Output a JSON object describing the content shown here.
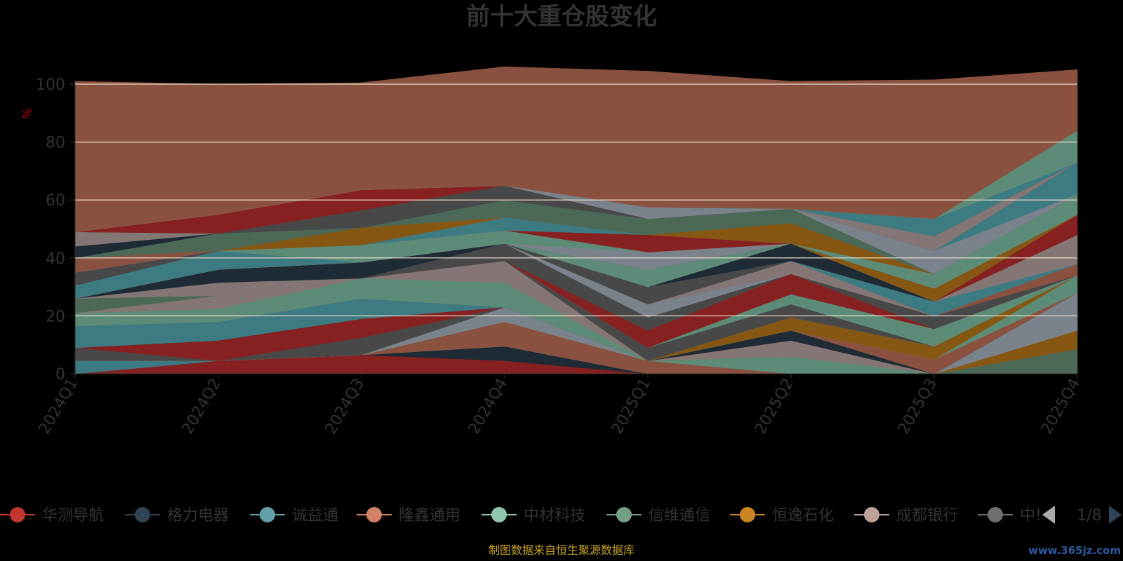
{
  "chart_data": {
    "type": "area",
    "stacked": true,
    "title": "前十大重仓股变化",
    "ylabel": "%",
    "ylim": [
      0,
      100
    ],
    "yticks": [
      "0",
      "20",
      "40",
      "60",
      "80",
      "100"
    ],
    "categories": [
      "2024Q1",
      "2024Q2",
      "2024Q3",
      "2024Q4",
      "2025Q1",
      "2025Q2",
      "2025Q3",
      "2025Q4"
    ],
    "grid": true,
    "legend_position": "bottom",
    "series": [
      {
        "color": "#8b2222",
        "values": [
          0,
          4.5,
          6.5,
          4.5,
          0,
          0,
          0,
          0
        ]
      },
      {
        "color": "#1f2b36",
        "values": [
          0,
          0,
          0,
          5,
          0,
          0,
          0,
          0
        ]
      },
      {
        "color": "#3f7f86",
        "values": [
          4.5,
          0,
          0,
          0,
          0,
          0,
          0,
          0
        ]
      },
      {
        "color": "#8f5442",
        "values": [
          0,
          0,
          0,
          8.5,
          4.5,
          0,
          0,
          0
        ]
      },
      {
        "color": "#5f8f7c",
        "values": [
          0,
          0,
          0,
          0,
          0,
          6,
          0,
          0
        ]
      },
      {
        "color": "#4e6b5a",
        "values": [
          0,
          0,
          0,
          0,
          0,
          0,
          0,
          8.5
        ]
      },
      {
        "color": "#8a5a14",
        "values": [
          0,
          0,
          0,
          0,
          0,
          0,
          0,
          6.5
        ]
      },
      {
        "color": "#887a78",
        "values": [
          0,
          0,
          0,
          0,
          0,
          5.5,
          0,
          0
        ]
      },
      {
        "color": "#7e8690",
        "values": [
          0,
          0,
          0,
          5,
          0,
          0,
          0,
          13
        ]
      },
      {
        "color": "#4a4a4a",
        "values": [
          4.5,
          0,
          6,
          0,
          0,
          0,
          0,
          0
        ]
      },
      {
        "color": "#8b2222",
        "values": [
          0,
          7,
          6.5,
          0,
          0,
          0,
          0,
          0
        ]
      },
      {
        "color": "#1f2b36",
        "values": [
          0,
          0,
          0,
          0,
          0,
          3.5,
          0,
          0
        ]
      },
      {
        "color": "#3f7f86",
        "values": [
          7.5,
          6.5,
          7,
          0,
          0,
          0,
          0,
          0
        ]
      },
      {
        "color": "#8f5442",
        "values": [
          0,
          0,
          0,
          0,
          0,
          0,
          5,
          0
        ]
      },
      {
        "color": "#5f8f7c",
        "values": [
          4.5,
          4.5,
          7,
          8.5,
          0,
          0,
          0,
          6
        ]
      },
      {
        "color": "#8a5a14",
        "values": [
          0,
          0,
          0,
          0,
          0,
          4.5,
          4.5,
          0
        ]
      },
      {
        "color": "#887a78",
        "values": [
          0,
          4.5,
          0,
          7.5,
          0,
          0,
          0,
          0
        ]
      },
      {
        "color": "#4a4a4a",
        "values": [
          0,
          0,
          0,
          0,
          4.5,
          4.5,
          0,
          0
        ]
      },
      {
        "color": "#5f8f7c",
        "values": [
          0,
          0,
          0,
          0,
          0,
          3.5,
          6,
          0
        ]
      },
      {
        "color": "#8b2222",
        "values": [
          0,
          0,
          0,
          0,
          6,
          7,
          0,
          0
        ]
      },
      {
        "color": "#4a4a4a",
        "values": [
          0,
          0,
          0,
          6,
          4.5,
          0,
          4.5,
          0
        ]
      },
      {
        "color": "#8f5442",
        "values": [
          0,
          0,
          0,
          0,
          0,
          0,
          0,
          4
        ]
      },
      {
        "color": "#7e8690",
        "values": [
          0,
          0,
          0,
          0,
          4.5,
          0,
          0,
          0
        ]
      },
      {
        "color": "#4e6b5a",
        "values": [
          5,
          0,
          0,
          0,
          0,
          0,
          0,
          0
        ]
      },
      {
        "color": "#887a78",
        "values": [
          0,
          4.5,
          0,
          0,
          0,
          4.5,
          0,
          0
        ]
      },
      {
        "color": "#4a4a4a",
        "values": [
          0,
          0,
          0,
          0,
          6,
          0,
          0,
          0
        ]
      },
      {
        "color": "#3f7f86",
        "values": [
          0,
          0,
          0,
          0,
          0,
          0,
          5,
          0
        ]
      },
      {
        "color": "#887a78",
        "values": [
          0,
          0,
          0,
          0,
          0,
          0,
          0,
          10
        ]
      },
      {
        "color": "#1f2b36",
        "values": [
          0,
          4.5,
          5.5,
          0,
          0,
          6,
          0,
          0
        ]
      },
      {
        "color": "#8b2222",
        "values": [
          0,
          0,
          0,
          0,
          0,
          0,
          0,
          7
        ]
      },
      {
        "color": "#5f8f7c",
        "values": [
          0,
          0,
          0,
          0,
          6,
          0,
          0,
          0
        ]
      },
      {
        "color": "#8a5a14",
        "values": [
          0,
          0,
          0,
          0,
          0,
          0,
          4.5,
          0
        ]
      },
      {
        "color": "#3f7f86",
        "values": [
          4.5,
          6.5,
          0,
          0,
          0,
          0,
          0,
          0
        ]
      },
      {
        "color": "#4a4a4a",
        "values": [
          4.5,
          0,
          0,
          0,
          0,
          0,
          0,
          0
        ]
      },
      {
        "color": "#7e8690",
        "values": [
          0,
          0,
          0,
          0,
          6,
          0,
          0,
          0
        ]
      },
      {
        "color": "#5f8f7c",
        "values": [
          0,
          0,
          6,
          4.5,
          0,
          0,
          5,
          7
        ]
      },
      {
        "color": "#8b2222",
        "values": [
          0,
          0,
          0,
          0,
          6,
          0,
          0,
          0
        ]
      },
      {
        "color": "#3f7f86",
        "values": [
          0,
          0,
          0,
          4.5,
          0,
          0,
          0,
          0
        ]
      },
      {
        "color": "#8f5442",
        "values": [
          5,
          0,
          0,
          0,
          0,
          0,
          0,
          0
        ]
      },
      {
        "color": "#8a5a14",
        "values": [
          0,
          0,
          6,
          0,
          0,
          7,
          0,
          0
        ]
      },
      {
        "color": "#4e6b5a",
        "values": [
          0,
          6,
          0,
          6,
          5.5,
          5,
          0,
          0
        ]
      },
      {
        "color": "#7e8690",
        "values": [
          0,
          0,
          0,
          0,
          0,
          0,
          8,
          0
        ]
      },
      {
        "color": "#3f7f86",
        "values": [
          0,
          0,
          0,
          0,
          0,
          0,
          0,
          11
        ]
      },
      {
        "color": "#1f2b36",
        "values": [
          4,
          0,
          0,
          0,
          0,
          0,
          0,
          0
        ]
      },
      {
        "color": "#4a4a4a",
        "values": [
          0,
          0,
          6,
          5,
          0,
          0,
          0,
          0
        ]
      },
      {
        "color": "#887a78",
        "values": [
          5,
          0,
          0,
          0,
          0,
          0,
          5,
          0
        ]
      },
      {
        "color": "#1f2b36",
        "values": [
          0,
          0,
          0,
          0,
          0,
          0,
          0,
          0
        ]
      },
      {
        "color": "#8b2222",
        "values": [
          0,
          6.5,
          7,
          0,
          0,
          0,
          0,
          0
        ]
      },
      {
        "color": "#7e8690",
        "values": [
          0,
          0,
          0,
          0,
          4,
          0,
          0,
          0
        ]
      },
      {
        "color": "#3f7f86",
        "values": [
          0,
          0,
          0,
          0,
          0,
          0,
          6,
          0
        ]
      },
      {
        "color": "#5f8f7c",
        "values": [
          0,
          0,
          0,
          0,
          0,
          0,
          0,
          11
        ]
      },
      {
        "color": "#8f5442",
        "values": [
          52,
          45,
          37,
          41,
          47,
          44,
          48,
          21
        ]
      }
    ],
    "legend": {
      "items": [
        {
          "name": "华测导航",
          "color": "#c23531"
        },
        {
          "name": "格力电器",
          "color": "#2f4554"
        },
        {
          "name": "诚益通",
          "color": "#61a0a8"
        },
        {
          "name": "隆鑫通用",
          "color": "#d48265"
        },
        {
          "name": "中材科技",
          "color": "#91c7ae"
        },
        {
          "name": "信维通信",
          "color": "#749f83"
        },
        {
          "name": "恒逸石化",
          "color": "#ca8622"
        },
        {
          "name": "成都银行",
          "color": "#bda29a"
        },
        {
          "name": "中!",
          "color": "#6e7074"
        }
      ],
      "page": "1/8"
    }
  },
  "footer": {
    "source": "制图数据来自恒生聚源数据库",
    "watermark": "www.365jz.com"
  },
  "colors": {
    "title": "#333333",
    "axis_text": "#333333",
    "ylabel": "#cc0000",
    "grid": "#e8d8c8",
    "source": "#c9a227",
    "watermark": "#2d5aa0",
    "legend_text": "#333333",
    "pager_active": "#2f4554",
    "pager_inactive": "#aaaaaa"
  }
}
